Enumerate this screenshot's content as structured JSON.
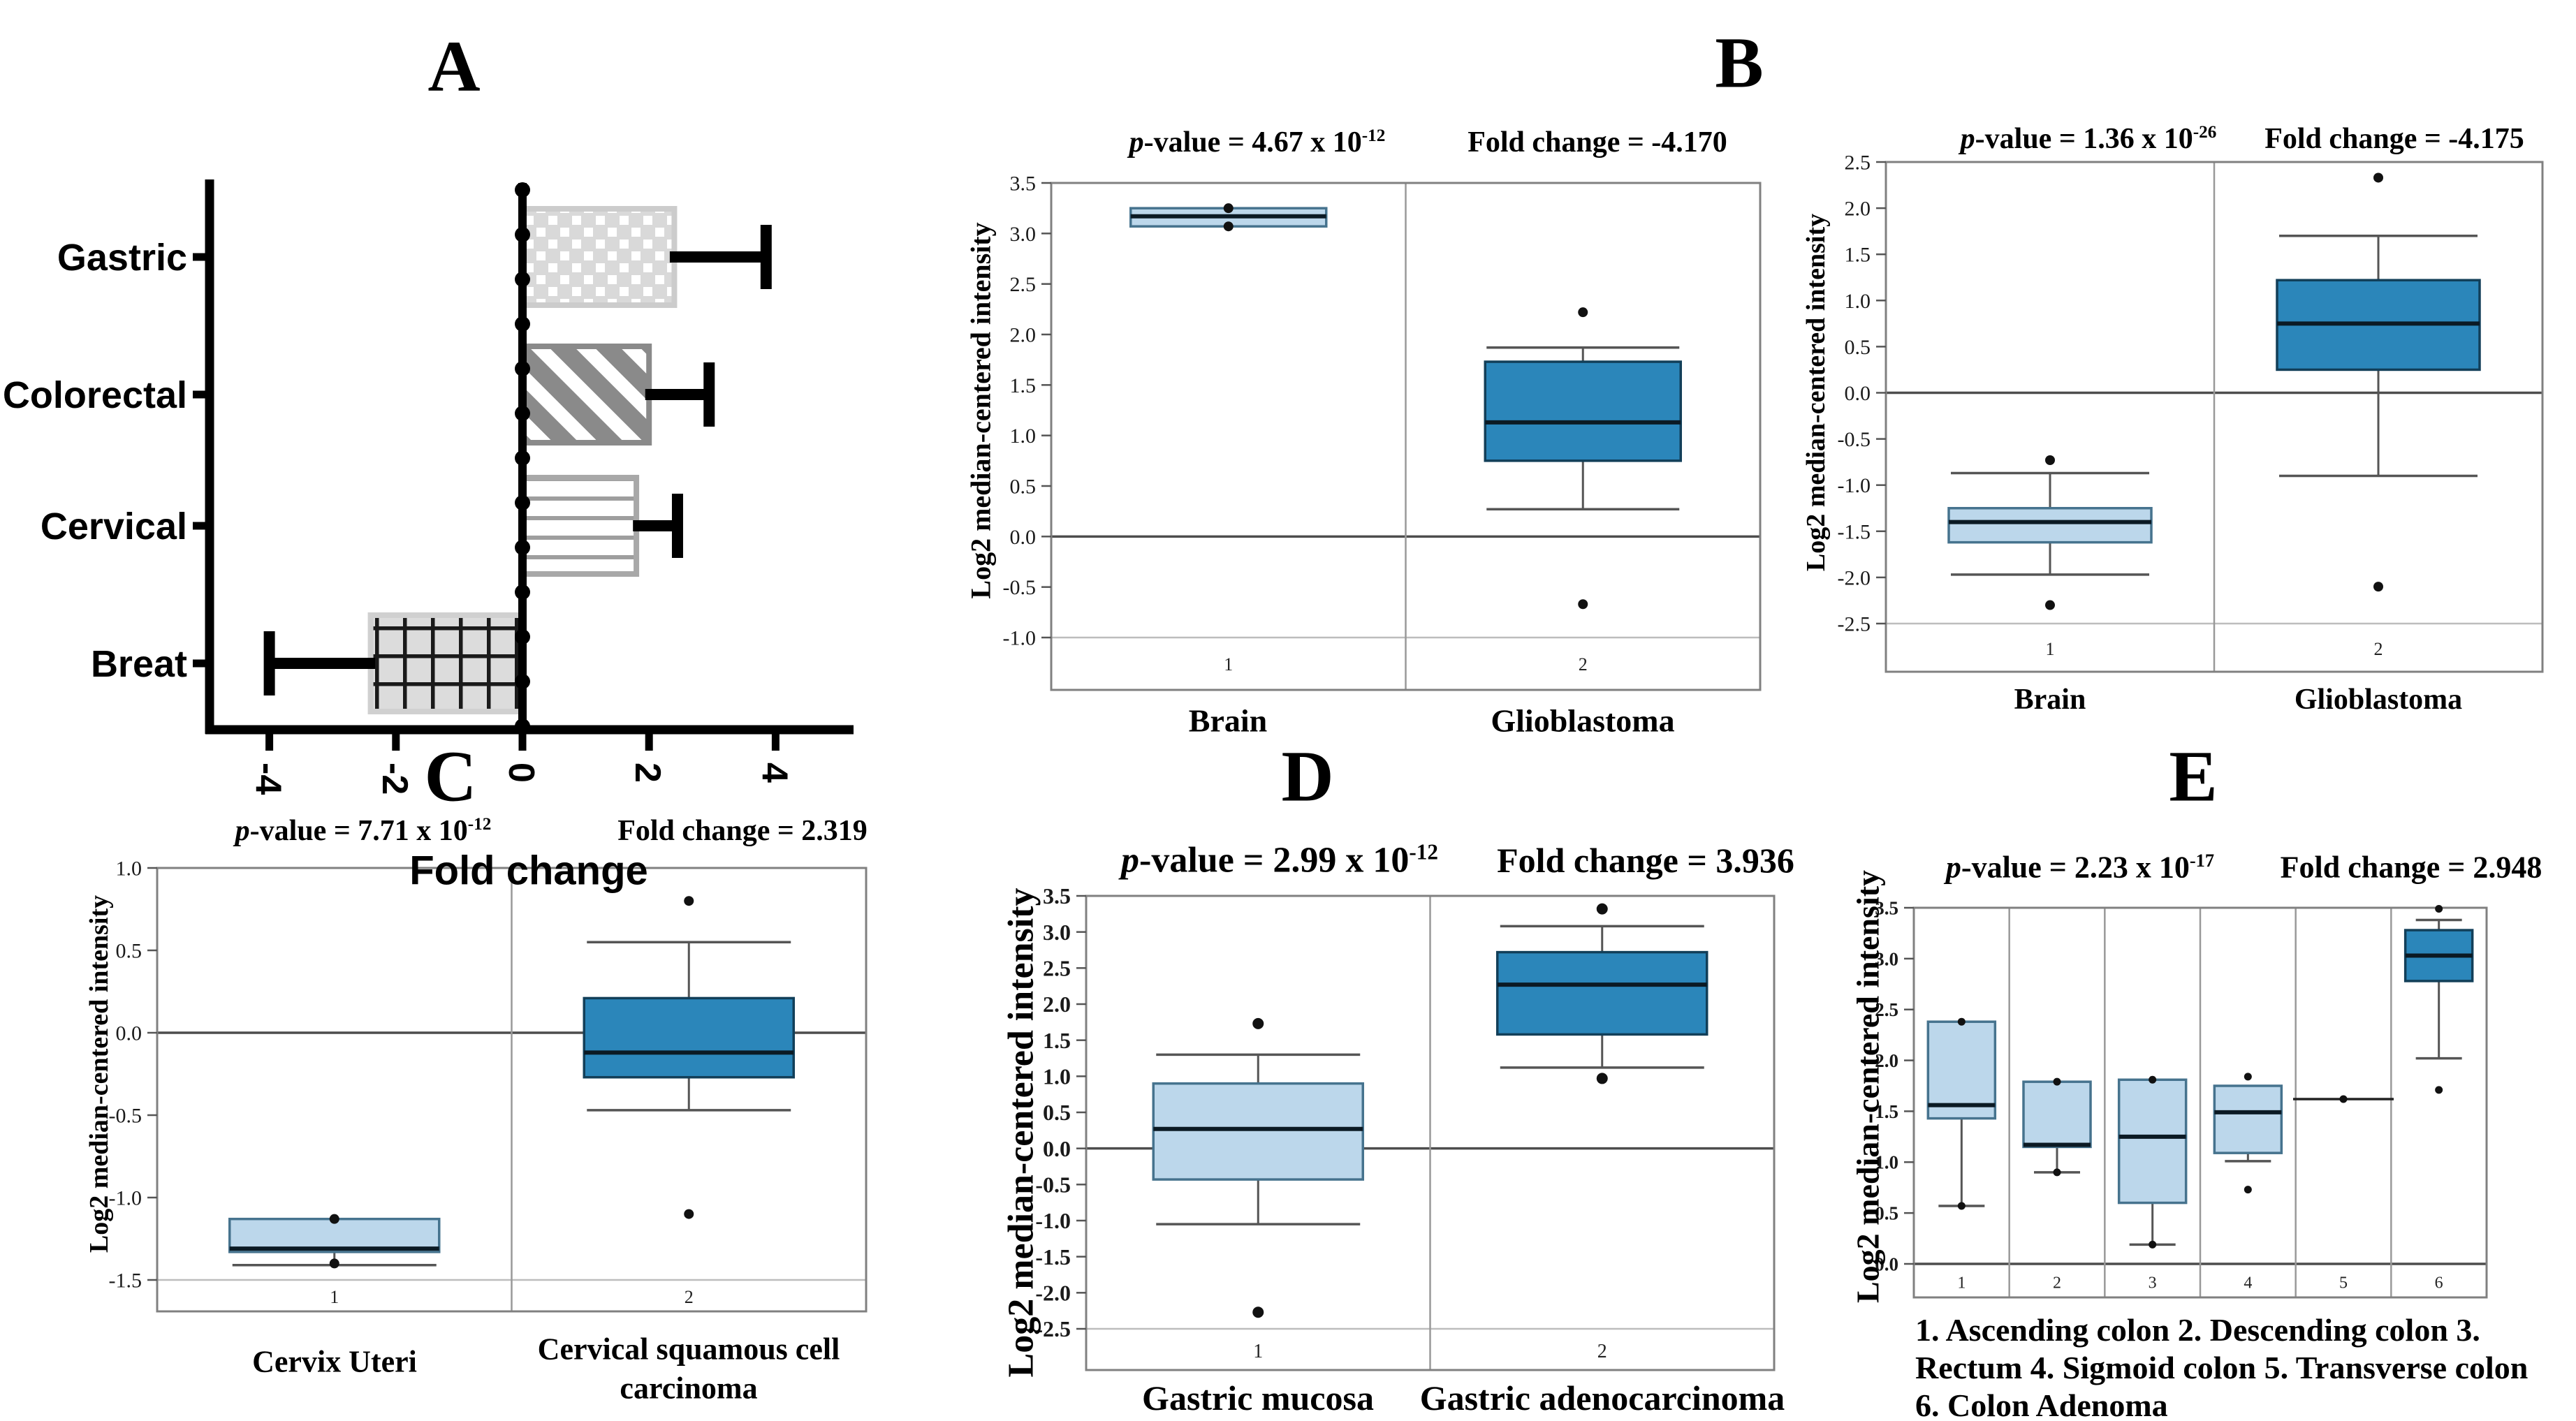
{
  "letters": {
    "a": "A",
    "b": "B",
    "c": "C",
    "d": "D",
    "e": "E"
  },
  "colors": {
    "light_box_fill": "#bcd7eb",
    "light_box_border": "#46738e",
    "dark_box_fill": "#2b86ba",
    "dark_box_border": "#123f59",
    "median_line": "#0b1a24",
    "whisker": "#555555",
    "outlier_dot": "#111111",
    "frame": "#808080",
    "divider": "#999999",
    "zero_line": "#4d4d4d",
    "grid_light": "#bdbdbd",
    "bar_gastric_fill": "#d9d9d9",
    "bar_gastric_pattern": "#ffffff",
    "bar_gastric_border": "#cccccc",
    "bar_colorectal_fill": "#8a8a8a",
    "bar_colorectal_pattern": "#ffffff",
    "bar_colorectal_border": "#8a8a8a",
    "bar_cervical_fill": "#ffffff",
    "bar_cervical_pattern": "#9e9e9e",
    "bar_cervical_border": "#a8a8a8",
    "bar_breast_fill": "#dcdcdc",
    "bar_breast_pattern": "#1a1a1a",
    "bar_breast_border": "#d0d0d0"
  },
  "chart_data": [
    {
      "id": "a",
      "type": "bar",
      "orientation": "horizontal",
      "categories": [
        "Gastric",
        "Colorectal",
        "Cervical",
        "Breat"
      ],
      "values": [
        2.4,
        2.0,
        1.8,
        -2.4
      ],
      "error_to": [
        3.85,
        2.95,
        2.45,
        -4.0
      ],
      "xticks": [
        -4,
        -2,
        0,
        2,
        4
      ],
      "xtick_labels": [
        "-4",
        "-2",
        "0",
        "2",
        "4"
      ],
      "xlabel": "Fold change",
      "xlim": [
        -5,
        5.2
      ],
      "patterns": [
        "dotted-grid",
        "diagonal-stripes",
        "horizontal-lines",
        "crosshatch-grid"
      ]
    },
    {
      "id": "b1",
      "type": "box",
      "title": {
        "p": "p",
        "p_text": "-value = 4.67 x 10",
        "p_exp": "-12",
        "fold_text": "Fold change = -4.170"
      },
      "ylabel": "Log2 median-centered  intensity",
      "yticks": [
        3.5,
        3.0,
        2.5,
        2.0,
        1.5,
        1.0,
        0.5,
        0.0,
        -0.5,
        -1.0
      ],
      "ytick_labels": [
        "3.5",
        "3.0",
        "2.5",
        "2.0",
        "1.5",
        "1.0",
        "0.5",
        "0.0",
        "-0.5",
        "-1.0"
      ],
      "groups": [
        {
          "num": "1",
          "label": "Brain",
          "fill": "light",
          "q1": 3.07,
          "q3": 3.25,
          "median": 3.17,
          "whisker_low": null,
          "whisker_high": null,
          "points": [
            3.25,
            3.07
          ]
        },
        {
          "num": "2",
          "label": "Glioblastoma",
          "fill": "dark",
          "q1": 0.75,
          "q3": 1.73,
          "median": 1.13,
          "whisker_low": 0.27,
          "whisker_high": 1.87,
          "points": [
            2.22,
            -0.67
          ]
        }
      ]
    },
    {
      "id": "b2",
      "type": "box",
      "title": {
        "p": "p",
        "p_text": "-value = 1.36 x 10",
        "p_exp": "-26",
        "fold_text": "Fold change = -4.175"
      },
      "ylabel": "Log2 median-centered  intensity",
      "yticks": [
        2.5,
        2.0,
        1.5,
        1.0,
        0.5,
        0.0,
        -0.5,
        -1.0,
        -1.5,
        -2.0,
        -2.5
      ],
      "ytick_labels": [
        "2.5",
        "2.0",
        "1.5",
        "1.0",
        "0.5",
        "0.0",
        "-0.5",
        "-1.0",
        "-1.5",
        "-2.0",
        "-2.5"
      ],
      "groups": [
        {
          "num": "1",
          "label": "Brain",
          "fill": "light",
          "q1": -1.62,
          "q3": -1.25,
          "median": -1.4,
          "whisker_low": -1.97,
          "whisker_high": -0.87,
          "points": [
            -0.73,
            -2.3
          ]
        },
        {
          "num": "2",
          "label": "Glioblastoma",
          "fill": "dark",
          "q1": 0.25,
          "q3": 1.22,
          "median": 0.75,
          "whisker_low": -0.9,
          "whisker_high": 1.7,
          "points": [
            2.33,
            -2.1
          ]
        }
      ]
    },
    {
      "id": "c",
      "type": "box",
      "title": {
        "p": "p",
        "p_text": "-value = 7.71 x 10",
        "p_exp": "-12",
        "fold_text": "Fold change = 2.319"
      },
      "ylabel": "Log2 median-centered  intensity",
      "yticks": [
        1.0,
        0.5,
        0.0,
        -0.5,
        -1.0,
        -1.5
      ],
      "ytick_labels": [
        "1.0",
        "0.5",
        "0.0",
        "-0.5",
        "-1.0",
        "-1.5"
      ],
      "groups": [
        {
          "num": "1",
          "label": "Cervix Uteri",
          "fill": "light",
          "q1": -1.33,
          "q3": -1.13,
          "median": -1.31,
          "whisker_low": -1.41,
          "whisker_high": null,
          "points": [
            -1.13,
            -1.4
          ]
        },
        {
          "num": "2",
          "label": "Cervical squamous cell carcinoma",
          "label_lines": [
            "Cervical squamous cell",
            "carcinoma"
          ],
          "fill": "dark",
          "q1": -0.27,
          "q3": 0.21,
          "median": -0.12,
          "whisker_low": -0.47,
          "whisker_high": 0.55,
          "points": [
            0.8,
            -1.1
          ]
        }
      ]
    },
    {
      "id": "d",
      "type": "box",
      "title": {
        "p": "p",
        "p_text": "-value = 2.99 x 10",
        "p_exp": "-12",
        "fold_text": "Fold change = 3.936"
      },
      "ylabel": "Log2 median-centered intensity",
      "yticks": [
        3.5,
        3.0,
        2.5,
        2.0,
        1.5,
        1.0,
        0.5,
        0.0,
        -0.5,
        -1.0,
        -1.5,
        -2.0,
        -2.5
      ],
      "ytick_labels": [
        "3.5",
        "3.0",
        "2.5",
        "2.0",
        "1.5",
        "1.0",
        "0.5",
        "0.0",
        "-0.5",
        "-1.0",
        "-1.5",
        "-2.0",
        "-2.5"
      ],
      "groups": [
        {
          "num": "1",
          "label": "Gastric mucosa",
          "fill": "light",
          "q1": -0.43,
          "q3": 0.9,
          "median": 0.27,
          "whisker_low": -1.05,
          "whisker_high": 1.3,
          "points": [
            1.73,
            -2.27
          ]
        },
        {
          "num": "2",
          "label": "Gastric adenocarcinoma",
          "fill": "dark",
          "q1": 1.58,
          "q3": 2.72,
          "median": 2.27,
          "whisker_low": 1.12,
          "whisker_high": 3.08,
          "points": [
            3.32,
            0.97
          ]
        }
      ]
    },
    {
      "id": "e",
      "type": "box",
      "title": {
        "p": "p",
        "p_text": "-value = 2.23 x 10",
        "p_exp": "-17",
        "fold_text": "Fold change = 2.948"
      },
      "ylabel": "Log2 median-centered intensity",
      "yticks": [
        3.5,
        3.0,
        2.5,
        2.0,
        1.5,
        1.0,
        0.5,
        0.0
      ],
      "ytick_labels": [
        "3.5",
        "3.0",
        "2.5",
        "2.0",
        "1.5",
        "1.0",
        "0.5",
        "0.0"
      ],
      "caption_lines": [
        "1. Ascending colon 2. Descending colon 3.",
        "Rectum 4. Sigmoid colon 5. Transverse  colon",
        "6. Colon Adenoma"
      ],
      "groups": [
        {
          "num": "1",
          "label": "Ascending colon",
          "fill": "light",
          "q1": 1.43,
          "q3": 2.38,
          "median": 1.56,
          "whisker_low": 0.57,
          "whisker_high": null,
          "points": [
            2.38,
            0.57
          ]
        },
        {
          "num": "2",
          "label": "Descending colon",
          "fill": "light",
          "q1": 1.15,
          "q3": 1.79,
          "median": 1.17,
          "whisker_low": 0.9,
          "whisker_high": null,
          "points": [
            1.79,
            0.9
          ]
        },
        {
          "num": "3",
          "label": "Rectum",
          "fill": "light",
          "q1": 0.6,
          "q3": 1.81,
          "median": 1.25,
          "whisker_low": 0.19,
          "whisker_high": null,
          "points": [
            1.81,
            0.19
          ]
        },
        {
          "num": "4",
          "label": "Sigmoid colon",
          "fill": "light",
          "q1": 1.09,
          "q3": 1.75,
          "median": 1.49,
          "whisker_low": 1.01,
          "whisker_high": null,
          "points": [
            1.84,
            0.73
          ]
        },
        {
          "num": "5",
          "label": "Transverse colon",
          "fill": "light",
          "line_value": 1.62,
          "points": [
            1.62
          ]
        },
        {
          "num": "6",
          "label": "Colon Adenoma",
          "fill": "dark",
          "q1": 2.78,
          "q3": 3.28,
          "median": 3.03,
          "whisker_low": 2.02,
          "whisker_high": 3.38,
          "points": [
            3.49,
            1.71
          ]
        }
      ]
    }
  ]
}
